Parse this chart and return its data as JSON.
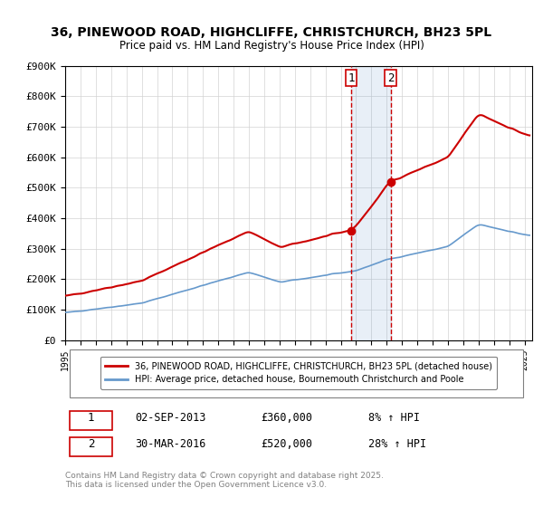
{
  "title": "36, PINEWOOD ROAD, HIGHCLIFFE, CHRISTCHURCH, BH23 5PL",
  "subtitle": "Price paid vs. HM Land Registry's House Price Index (HPI)",
  "legend_line1": "36, PINEWOOD ROAD, HIGHCLIFFE, CHRISTCHURCH, BH23 5PL (detached house)",
  "legend_line2": "HPI: Average price, detached house, Bournemouth Christchurch and Poole",
  "transaction1_label": "1",
  "transaction1_date": "02-SEP-2013",
  "transaction1_price": "£360,000",
  "transaction1_hpi": "8% ↑ HPI",
  "transaction2_label": "2",
  "transaction2_date": "30-MAR-2016",
  "transaction2_price": "£520,000",
  "transaction2_hpi": "28% ↑ HPI",
  "footer": "Contains HM Land Registry data © Crown copyright and database right 2025.\nThis data is licensed under the Open Government Licence v3.0.",
  "red_color": "#cc0000",
  "blue_color": "#6699cc",
  "background": "#ffffff",
  "ylim": [
    0,
    900000
  ],
  "yticks": [
    0,
    100000,
    200000,
    300000,
    400000,
    500000,
    600000,
    700000,
    800000,
    900000
  ],
  "xlim_start": 1995.0,
  "xlim_end": 2025.5,
  "transaction1_year": 2013.67,
  "transaction2_year": 2016.25,
  "transaction1_price_val": 360000,
  "transaction2_price_val": 520000
}
